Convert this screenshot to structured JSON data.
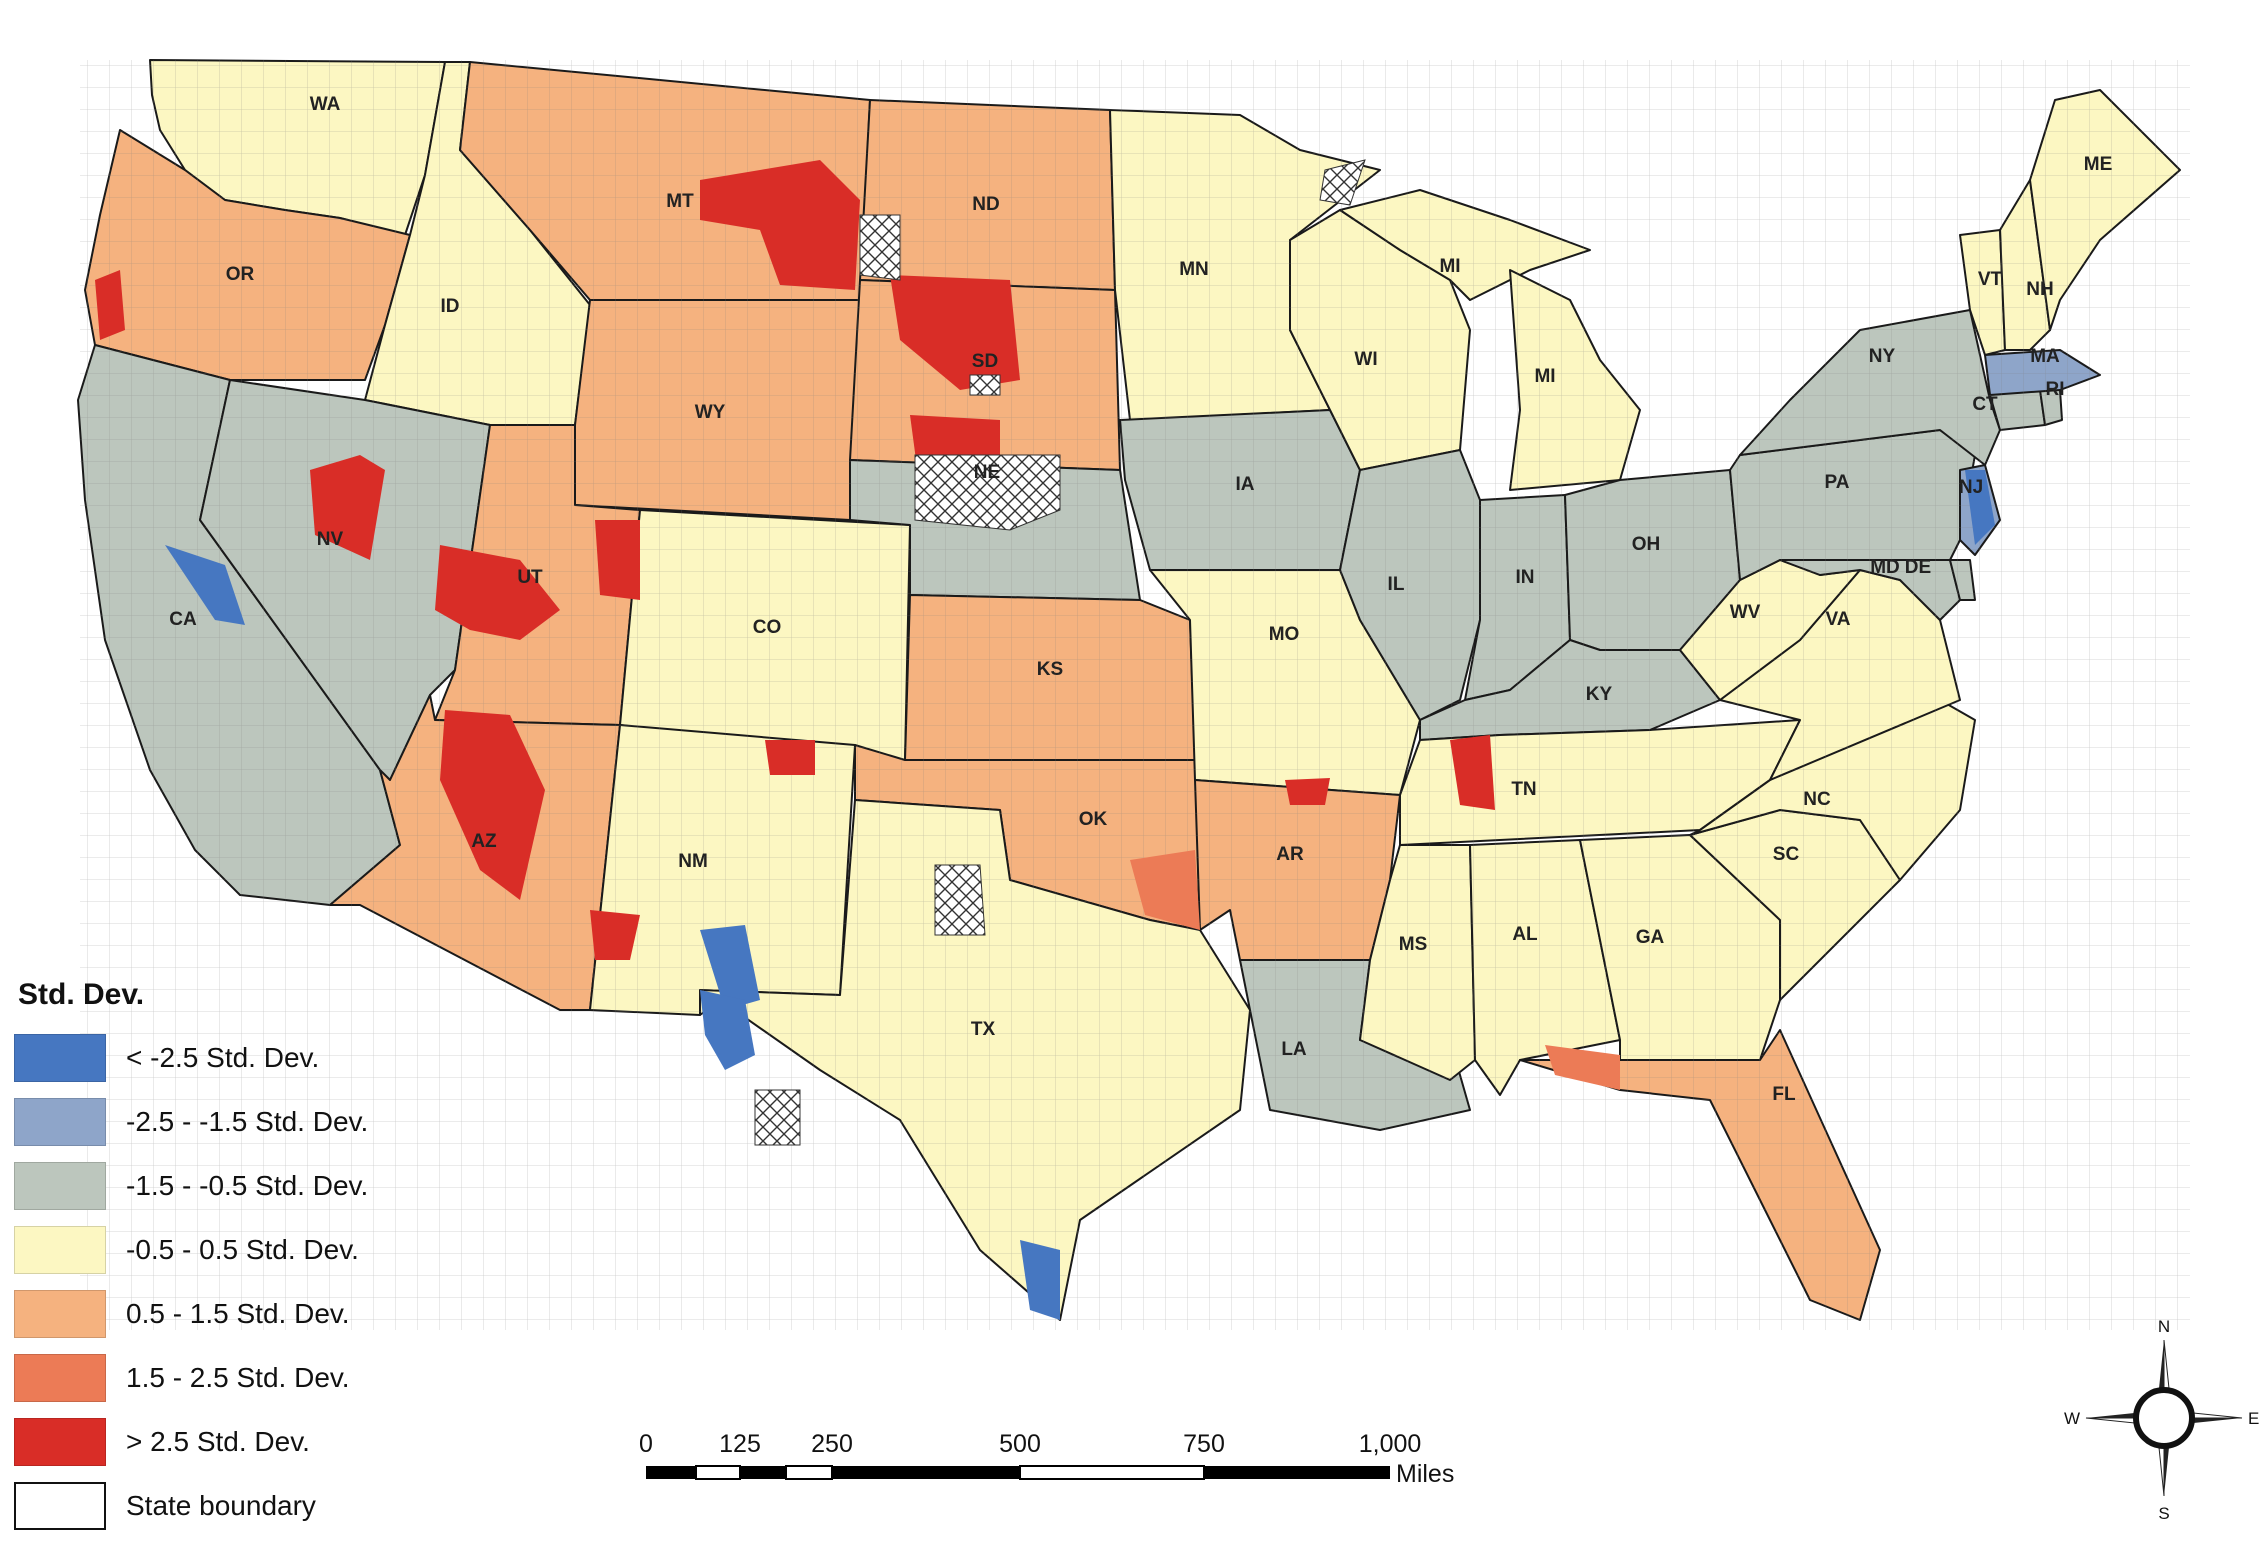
{
  "legend": {
    "title": "Std. Dev.",
    "classes": [
      {
        "label": "< -2.5 Std. Dev.",
        "color": "#4677c1"
      },
      {
        "label": "-2.5 - -1.5 Std. Dev.",
        "color": "#8ea5c9"
      },
      {
        "label": "-1.5 - -0.5 Std. Dev.",
        "color": "#bcc6bd"
      },
      {
        "label": "-0.5 - 0.5 Std. Dev.",
        "color": "#fcf7c2"
      },
      {
        "label": "0.5 - 1.5 Std. Dev.",
        "color": "#f5b27f"
      },
      {
        "label": "1.5 - 2.5 Std. Dev.",
        "color": "#ec7b56"
      },
      {
        "label": "> 2.5 Std. Dev.",
        "color": "#d92d27"
      },
      {
        "label": "State boundary",
        "color": "#ffffff"
      }
    ]
  },
  "scale_bar": {
    "ticks": [
      "0",
      "125",
      "250",
      "500",
      "750",
      "1,000"
    ],
    "unit": "Miles"
  },
  "compass": {
    "n": "N",
    "s": "S",
    "e": "E",
    "w": "W"
  },
  "states": [
    {
      "id": "wa",
      "label": "WA",
      "color": "#fcf7c2"
    },
    {
      "id": "or",
      "label": "OR",
      "color": "#f5b27f"
    },
    {
      "id": "ca",
      "label": "CA",
      "color": "#bcc6bd"
    },
    {
      "id": "id",
      "label": "ID",
      "color": "#fcf7c2"
    },
    {
      "id": "nv",
      "label": "NV",
      "color": "#bcc6bd"
    },
    {
      "id": "mt",
      "label": "MT",
      "color": "#f5b27f"
    },
    {
      "id": "wy",
      "label": "WY",
      "color": "#f5b27f"
    },
    {
      "id": "ut",
      "label": "UT",
      "color": "#f5b27f"
    },
    {
      "id": "az",
      "label": "AZ",
      "color": "#f5b27f"
    },
    {
      "id": "co",
      "label": "CO",
      "color": "#fcf7c2"
    },
    {
      "id": "nm",
      "label": "NM",
      "color": "#fcf7c2"
    },
    {
      "id": "nd",
      "label": "ND",
      "color": "#f5b27f"
    },
    {
      "id": "sd",
      "label": "SD",
      "color": "#f5b27f"
    },
    {
      "id": "ne",
      "label": "NE",
      "color": "#bcc6bd"
    },
    {
      "id": "ks",
      "label": "KS",
      "color": "#f5b27f"
    },
    {
      "id": "ok",
      "label": "OK",
      "color": "#f5b27f"
    },
    {
      "id": "tx",
      "label": "TX",
      "color": "#fcf7c2"
    },
    {
      "id": "mn",
      "label": "MN",
      "color": "#fcf7c2"
    },
    {
      "id": "ia",
      "label": "IA",
      "color": "#bcc6bd"
    },
    {
      "id": "mo",
      "label": "MO",
      "color": "#fcf7c2"
    },
    {
      "id": "ar",
      "label": "AR",
      "color": "#f5b27f"
    },
    {
      "id": "la",
      "label": "LA",
      "color": "#bcc6bd"
    },
    {
      "id": "wi",
      "label": "WI",
      "color": "#fcf7c2"
    },
    {
      "id": "il",
      "label": "IL",
      "color": "#bcc6bd"
    },
    {
      "id": "mi_up",
      "label": "MI",
      "color": "#fcf7c2"
    },
    {
      "id": "mi",
      "label": "MI",
      "color": "#fcf7c2"
    },
    {
      "id": "in",
      "label": "IN",
      "color": "#bcc6bd"
    },
    {
      "id": "oh",
      "label": "OH",
      "color": "#bcc6bd"
    },
    {
      "id": "ky",
      "label": "KY",
      "color": "#bcc6bd"
    },
    {
      "id": "tn",
      "label": "TN",
      "color": "#fcf7c2"
    },
    {
      "id": "ms",
      "label": "MS",
      "color": "#fcf7c2"
    },
    {
      "id": "al",
      "label": "AL",
      "color": "#fcf7c2"
    },
    {
      "id": "ga",
      "label": "GA",
      "color": "#fcf7c2"
    },
    {
      "id": "fl",
      "label": "FL",
      "color": "#f5b27f"
    },
    {
      "id": "sc",
      "label": "SC",
      "color": "#fcf7c2"
    },
    {
      "id": "nc",
      "label": "NC",
      "color": "#fcf7c2"
    },
    {
      "id": "va",
      "label": "VA",
      "color": "#fcf7c2"
    },
    {
      "id": "wv",
      "label": "WV",
      "color": "#fcf7c2"
    },
    {
      "id": "pa",
      "label": "PA",
      "color": "#bcc6bd"
    },
    {
      "id": "ny",
      "label": "NY",
      "color": "#bcc6bd"
    },
    {
      "id": "md",
      "label": "MD",
      "color": "#bcc6bd"
    },
    {
      "id": "de",
      "label": "DE",
      "color": "#bcc6bd"
    },
    {
      "id": "nj",
      "label": "NJ",
      "color": "#8ea5c9"
    },
    {
      "id": "ct",
      "label": "CT",
      "color": "#bcc6bd"
    },
    {
      "id": "ri",
      "label": "RI",
      "color": "#bcc6bd"
    },
    {
      "id": "ma",
      "label": "MA",
      "color": "#8ea5c9"
    },
    {
      "id": "vt",
      "label": "VT",
      "color": "#fcf7c2"
    },
    {
      "id": "nh",
      "label": "NH",
      "color": "#fcf7c2"
    },
    {
      "id": "me",
      "label": "ME",
      "color": "#fcf7c2"
    }
  ]
}
